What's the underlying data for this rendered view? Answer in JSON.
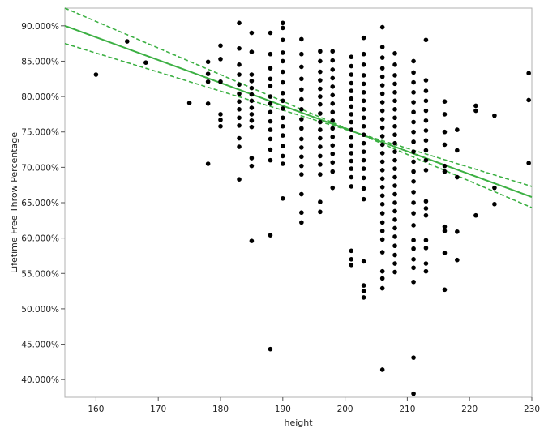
{
  "chart_data": {
    "type": "scatter",
    "title": "",
    "xlabel": "height",
    "ylabel": "Lifetime Free Throw Percentage",
    "xlim": [
      155,
      230
    ],
    "ylim": [
      37.5,
      92.5
    ],
    "xticks": [
      160,
      170,
      180,
      190,
      200,
      210,
      220,
      230
    ],
    "xtick_labels": [
      "160",
      "170",
      "180",
      "190",
      "200",
      "210",
      "220",
      "230"
    ],
    "yticks": [
      40,
      45,
      50,
      55,
      60,
      65,
      70,
      75,
      80,
      85,
      90
    ],
    "ytick_labels": [
      "40.000%",
      "45.000%",
      "50.000%",
      "55.000%",
      "60.000%",
      "65.000%",
      "70.000%",
      "75.000%",
      "80.000%",
      "85.000%",
      "90.000%"
    ],
    "grid": false,
    "colors": {
      "points": "#000000",
      "fit": "#3cb043"
    },
    "series": [
      {
        "type": "scatter",
        "points": [
          [
            160,
            83.1
          ],
          [
            165,
            87.8
          ],
          [
            168,
            84.8
          ],
          [
            175,
            79.1
          ],
          [
            178,
            84.9
          ],
          [
            178,
            83.2
          ],
          [
            178,
            82.1
          ],
          [
            178,
            79.0
          ],
          [
            178,
            70.5
          ],
          [
            180,
            87.2
          ],
          [
            180,
            85.3
          ],
          [
            180,
            82.1
          ],
          [
            180,
            77.5
          ],
          [
            180,
            76.7
          ],
          [
            180,
            75.8
          ],
          [
            183,
            90.4
          ],
          [
            183,
            86.8
          ],
          [
            183,
            84.5
          ],
          [
            183,
            83.1
          ],
          [
            183,
            81.7
          ],
          [
            183,
            80.4
          ],
          [
            183,
            79.3
          ],
          [
            183,
            78.2
          ],
          [
            183,
            77.0
          ],
          [
            183,
            75.9
          ],
          [
            183,
            74.1
          ],
          [
            183,
            72.9
          ],
          [
            183,
            68.3
          ],
          [
            185,
            89.0
          ],
          [
            185,
            86.3
          ],
          [
            185,
            83.1
          ],
          [
            185,
            82.2
          ],
          [
            185,
            81.2
          ],
          [
            185,
            80.3
          ],
          [
            185,
            79.4
          ],
          [
            185,
            78.4
          ],
          [
            185,
            77.5
          ],
          [
            185,
            76.6
          ],
          [
            185,
            75.7
          ],
          [
            185,
            71.3
          ],
          [
            185,
            70.2
          ],
          [
            185,
            59.6
          ],
          [
            188,
            89.0
          ],
          [
            188,
            86.0
          ],
          [
            188,
            84.0
          ],
          [
            188,
            82.5
          ],
          [
            188,
            81.5
          ],
          [
            188,
            80.0
          ],
          [
            188,
            79.0
          ],
          [
            188,
            77.8
          ],
          [
            188,
            76.5
          ],
          [
            188,
            75.3
          ],
          [
            188,
            74.0
          ],
          [
            188,
            72.5
          ],
          [
            188,
            71.0
          ],
          [
            188,
            60.4
          ],
          [
            188,
            44.3
          ],
          [
            190,
            90.4
          ],
          [
            190,
            89.7
          ],
          [
            190,
            88.0
          ],
          [
            190,
            86.2
          ],
          [
            190,
            85.0
          ],
          [
            190,
            83.5
          ],
          [
            190,
            82.0
          ],
          [
            190,
            80.5
          ],
          [
            190,
            79.4
          ],
          [
            190,
            78.3
          ],
          [
            190,
            77.0
          ],
          [
            190,
            75.8
          ],
          [
            190,
            74.5
          ],
          [
            190,
            73.0
          ],
          [
            190,
            71.6
          ],
          [
            190,
            70.5
          ],
          [
            190,
            65.6
          ],
          [
            193,
            88.1
          ],
          [
            193,
            86.0
          ],
          [
            193,
            84.2
          ],
          [
            193,
            82.5
          ],
          [
            193,
            81.0
          ],
          [
            193,
            79.6
          ],
          [
            193,
            78.2
          ],
          [
            193,
            76.8
          ],
          [
            193,
            75.5
          ],
          [
            193,
            74.0
          ],
          [
            193,
            72.8
          ],
          [
            193,
            71.5
          ],
          [
            193,
            70.2
          ],
          [
            193,
            69.0
          ],
          [
            193,
            66.2
          ],
          [
            193,
            63.6
          ],
          [
            193,
            62.2
          ],
          [
            196,
            86.4
          ],
          [
            196,
            85.0
          ],
          [
            196,
            83.5
          ],
          [
            196,
            82.3
          ],
          [
            196,
            81.1
          ],
          [
            196,
            80.0
          ],
          [
            196,
            78.9
          ],
          [
            196,
            77.6
          ],
          [
            196,
            76.4
          ],
          [
            196,
            75.3
          ],
          [
            196,
            74.1
          ],
          [
            196,
            72.9
          ],
          [
            196,
            71.6
          ],
          [
            196,
            70.4
          ],
          [
            196,
            69.0
          ],
          [
            196,
            65.1
          ],
          [
            196,
            63.7
          ],
          [
            198,
            86.4
          ],
          [
            198,
            85.1
          ],
          [
            198,
            83.8
          ],
          [
            198,
            82.6
          ],
          [
            198,
            81.4
          ],
          [
            198,
            80.2
          ],
          [
            198,
            79.0
          ],
          [
            198,
            77.8
          ],
          [
            198,
            76.6
          ],
          [
            198,
            75.5
          ],
          [
            198,
            74.3
          ],
          [
            198,
            73.1
          ],
          [
            198,
            71.9
          ],
          [
            198,
            70.7
          ],
          [
            198,
            69.4
          ],
          [
            198,
            67.1
          ],
          [
            201,
            85.6
          ],
          [
            201,
            84.3
          ],
          [
            201,
            83.1
          ],
          [
            201,
            81.9
          ],
          [
            201,
            80.8
          ],
          [
            201,
            79.7
          ],
          [
            201,
            78.6
          ],
          [
            201,
            77.5
          ],
          [
            201,
            76.4
          ],
          [
            201,
            75.3
          ],
          [
            201,
            74.2
          ],
          [
            201,
            73.1
          ],
          [
            201,
            72.0
          ],
          [
            201,
            70.9
          ],
          [
            201,
            69.8
          ],
          [
            201,
            68.6
          ],
          [
            201,
            67.3
          ],
          [
            201,
            58.2
          ],
          [
            201,
            57.0
          ],
          [
            201,
            56.2
          ],
          [
            203,
            88.3
          ],
          [
            203,
            86.0
          ],
          [
            203,
            84.5
          ],
          [
            203,
            83.0
          ],
          [
            203,
            81.8
          ],
          [
            203,
            80.6
          ],
          [
            203,
            79.4
          ],
          [
            203,
            78.2
          ],
          [
            203,
            77.0
          ],
          [
            203,
            75.8
          ],
          [
            203,
            74.6
          ],
          [
            203,
            73.4
          ],
          [
            203,
            72.2
          ],
          [
            203,
            71.0
          ],
          [
            203,
            69.8
          ],
          [
            203,
            68.5
          ],
          [
            203,
            67.0
          ],
          [
            203,
            65.5
          ],
          [
            203,
            56.7
          ],
          [
            203,
            53.3
          ],
          [
            203,
            52.5
          ],
          [
            203,
            51.6
          ],
          [
            206,
            89.8
          ],
          [
            206,
            87.0
          ],
          [
            206,
            85.5
          ],
          [
            206,
            84.0
          ],
          [
            206,
            82.8
          ],
          [
            206,
            81.6
          ],
          [
            206,
            80.4
          ],
          [
            206,
            79.2
          ],
          [
            206,
            78.0
          ],
          [
            206,
            76.8
          ],
          [
            206,
            75.6
          ],
          [
            206,
            74.4
          ],
          [
            206,
            73.2
          ],
          [
            206,
            72.0
          ],
          [
            206,
            70.8
          ],
          [
            206,
            69.6
          ],
          [
            206,
            68.4
          ],
          [
            206,
            67.2
          ],
          [
            206,
            66.0
          ],
          [
            206,
            64.8
          ],
          [
            206,
            63.5
          ],
          [
            206,
            62.2
          ],
          [
            206,
            61.0
          ],
          [
            206,
            59.8
          ],
          [
            206,
            58.0
          ],
          [
            206,
            55.3
          ],
          [
            206,
            54.3
          ],
          [
            206,
            52.9
          ],
          [
            206,
            41.4
          ],
          [
            208,
            86.1
          ],
          [
            208,
            84.5
          ],
          [
            208,
            83.0
          ],
          [
            208,
            81.8
          ],
          [
            208,
            80.6
          ],
          [
            208,
            79.4
          ],
          [
            208,
            78.2
          ],
          [
            208,
            77.0
          ],
          [
            208,
            75.8
          ],
          [
            208,
            74.6
          ],
          [
            208,
            73.4
          ],
          [
            208,
            72.2
          ],
          [
            208,
            71.0
          ],
          [
            208,
            69.8
          ],
          [
            208,
            68.6
          ],
          [
            208,
            67.4
          ],
          [
            208,
            66.2
          ],
          [
            208,
            65.0
          ],
          [
            208,
            63.8
          ],
          [
            208,
            62.6
          ],
          [
            208,
            61.4
          ],
          [
            208,
            60.2
          ],
          [
            208,
            58.9
          ],
          [
            208,
            57.6
          ],
          [
            208,
            56.4
          ],
          [
            208,
            55.2
          ],
          [
            211,
            85.0
          ],
          [
            211,
            83.4
          ],
          [
            211,
            82.0
          ],
          [
            211,
            80.6
          ],
          [
            211,
            79.2
          ],
          [
            211,
            77.8
          ],
          [
            211,
            76.4
          ],
          [
            211,
            75.0
          ],
          [
            211,
            73.6
          ],
          [
            211,
            72.2
          ],
          [
            211,
            70.8
          ],
          [
            211,
            69.4
          ],
          [
            211,
            68.0
          ],
          [
            211,
            66.5
          ],
          [
            211,
            65.0
          ],
          [
            211,
            63.5
          ],
          [
            211,
            61.8
          ],
          [
            211,
            59.7
          ],
          [
            211,
            58.5
          ],
          [
            211,
            57.0
          ],
          [
            211,
            55.8
          ],
          [
            211,
            53.8
          ],
          [
            211,
            43.1
          ],
          [
            211,
            38.0
          ],
          [
            213,
            88.0
          ],
          [
            213,
            82.3
          ],
          [
            213,
            80.8
          ],
          [
            213,
            79.4
          ],
          [
            213,
            78.0
          ],
          [
            213,
            76.6
          ],
          [
            213,
            75.2
          ],
          [
            213,
            73.8
          ],
          [
            213,
            72.4
          ],
          [
            213,
            71.0
          ],
          [
            213,
            69.6
          ],
          [
            213,
            65.2
          ],
          [
            213,
            64.2
          ],
          [
            213,
            63.2
          ],
          [
            213,
            59.7
          ],
          [
            213,
            58.6
          ],
          [
            213,
            56.4
          ],
          [
            213,
            55.3
          ],
          [
            216,
            79.3
          ],
          [
            216,
            77.5
          ],
          [
            216,
            75.0
          ],
          [
            216,
            73.2
          ],
          [
            216,
            70.2
          ],
          [
            216,
            69.4
          ],
          [
            216,
            61.6
          ],
          [
            216,
            61.0
          ],
          [
            216,
            57.9
          ],
          [
            216,
            52.7
          ],
          [
            218,
            75.3
          ],
          [
            218,
            72.4
          ],
          [
            218,
            68.6
          ],
          [
            218,
            60.9
          ],
          [
            218,
            56.9
          ],
          [
            221,
            78.7
          ],
          [
            221,
            78.0
          ],
          [
            221,
            63.2
          ],
          [
            224,
            77.3
          ],
          [
            224,
            67.1
          ],
          [
            224,
            64.8
          ],
          [
            229.5,
            83.3
          ],
          [
            229.5,
            79.5
          ],
          [
            229.5,
            70.6
          ]
        ]
      },
      {
        "type": "line",
        "name": "",
        "style": "solid",
        "x": [
          155,
          230
        ],
        "y": [
          90.0,
          65.8
        ]
      },
      {
        "type": "line",
        "name": "",
        "style": "dashed",
        "x": [
          155,
          230
        ],
        "y": [
          92.5,
          64.3
        ]
      },
      {
        "type": "line",
        "name": "",
        "style": "dashed",
        "x": [
          155,
          230
        ],
        "y": [
          87.5,
          67.3
        ]
      }
    ]
  }
}
